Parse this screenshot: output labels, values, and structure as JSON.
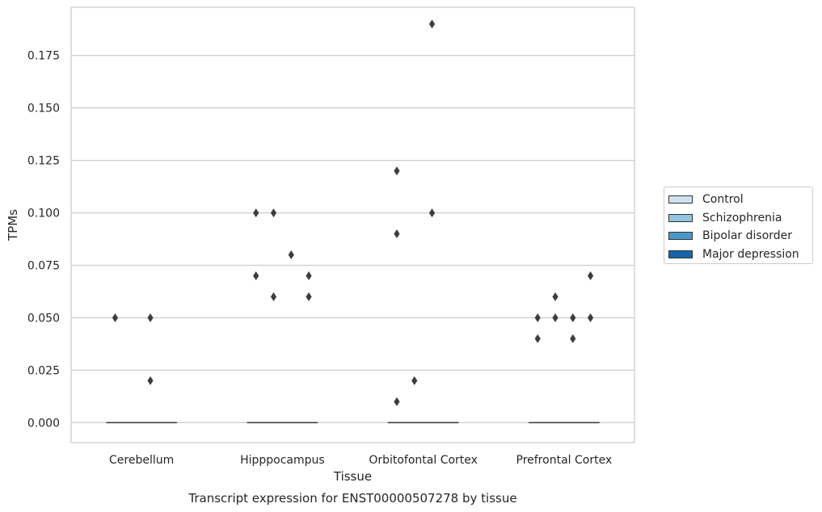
{
  "chart_data": {
    "type": "box",
    "title": "Transcript expression for ENST00000507278 by tissue",
    "xlabel": "Tissue",
    "ylabel": "TPMs",
    "ylim": [
      -0.0095,
      0.198
    ],
    "yticks": [
      0.0,
      0.025,
      0.05,
      0.075,
      0.1,
      0.125,
      0.15,
      0.175
    ],
    "ytick_labels": [
      "0.000",
      "0.025",
      "0.050",
      "0.075",
      "0.100",
      "0.125",
      "0.150",
      "0.175"
    ],
    "grid": true,
    "legend_position": "right",
    "categories": [
      "Cerebellum",
      "Hipppocampus",
      "Orbitofontal Cortex",
      "Prefrontal Cortex"
    ],
    "series": [
      {
        "name": "Control",
        "color": "#d0e1f2",
        "boxes": [
          {
            "median": 0,
            "q1": 0,
            "q3": 0,
            "whisker_low": 0,
            "whisker_high": 0,
            "outliers": [
              0.05
            ]
          },
          {
            "median": 0,
            "q1": 0,
            "q3": 0,
            "whisker_low": 0,
            "whisker_high": 0,
            "outliers": [
              0.1,
              0.07
            ]
          },
          {
            "median": 0,
            "q1": 0,
            "q3": 0,
            "whisker_low": 0,
            "whisker_high": 0,
            "outliers": [
              0.12,
              0.09,
              0.01
            ]
          },
          {
            "median": 0,
            "q1": 0,
            "q3": 0,
            "whisker_low": 0,
            "whisker_high": 0,
            "outliers": [
              0.05,
              0.04
            ]
          }
        ]
      },
      {
        "name": "Schizophrenia",
        "color": "#94c4df",
        "boxes": [
          {
            "median": 0,
            "q1": 0,
            "q3": 0,
            "whisker_low": 0,
            "whisker_high": 0,
            "outliers": []
          },
          {
            "median": 0,
            "q1": 0,
            "q3": 0,
            "whisker_low": 0,
            "whisker_high": 0,
            "outliers": [
              0.1,
              0.06
            ]
          },
          {
            "median": 0,
            "q1": 0,
            "q3": 0,
            "whisker_low": 0,
            "whisker_high": 0,
            "outliers": [
              0.02
            ]
          },
          {
            "median": 0,
            "q1": 0,
            "q3": 0,
            "whisker_low": 0,
            "whisker_high": 0,
            "outliers": [
              0.06,
              0.05
            ]
          }
        ]
      },
      {
        "name": "Bipolar disorder",
        "color": "#4a98c9",
        "boxes": [
          {
            "median": 0,
            "q1": 0,
            "q3": 0,
            "whisker_low": 0,
            "whisker_high": 0,
            "outliers": [
              0.05,
              0.02
            ]
          },
          {
            "median": 0,
            "q1": 0,
            "q3": 0,
            "whisker_low": 0,
            "whisker_high": 0,
            "outliers": [
              0.08
            ]
          },
          {
            "median": 0,
            "q1": 0,
            "q3": 0,
            "whisker_low": 0,
            "whisker_high": 0,
            "outliers": [
              0.19,
              0.1
            ]
          },
          {
            "median": 0,
            "q1": 0,
            "q3": 0,
            "whisker_low": 0,
            "whisker_high": 0,
            "outliers": [
              0.05,
              0.04
            ]
          }
        ]
      },
      {
        "name": "Major depression",
        "color": "#1764ab",
        "boxes": [
          {
            "median": 0,
            "q1": 0,
            "q3": 0,
            "whisker_low": 0,
            "whisker_high": 0,
            "outliers": []
          },
          {
            "median": 0,
            "q1": 0,
            "q3": 0,
            "whisker_low": 0,
            "whisker_high": 0,
            "outliers": [
              0.07,
              0.06
            ]
          },
          {
            "median": 0,
            "q1": 0,
            "q3": 0,
            "whisker_low": 0,
            "whisker_high": 0,
            "outliers": []
          },
          {
            "median": 0,
            "q1": 0,
            "q3": 0,
            "whisker_low": 0,
            "whisker_high": 0,
            "outliers": [
              0.07,
              0.05
            ]
          }
        ]
      }
    ]
  }
}
